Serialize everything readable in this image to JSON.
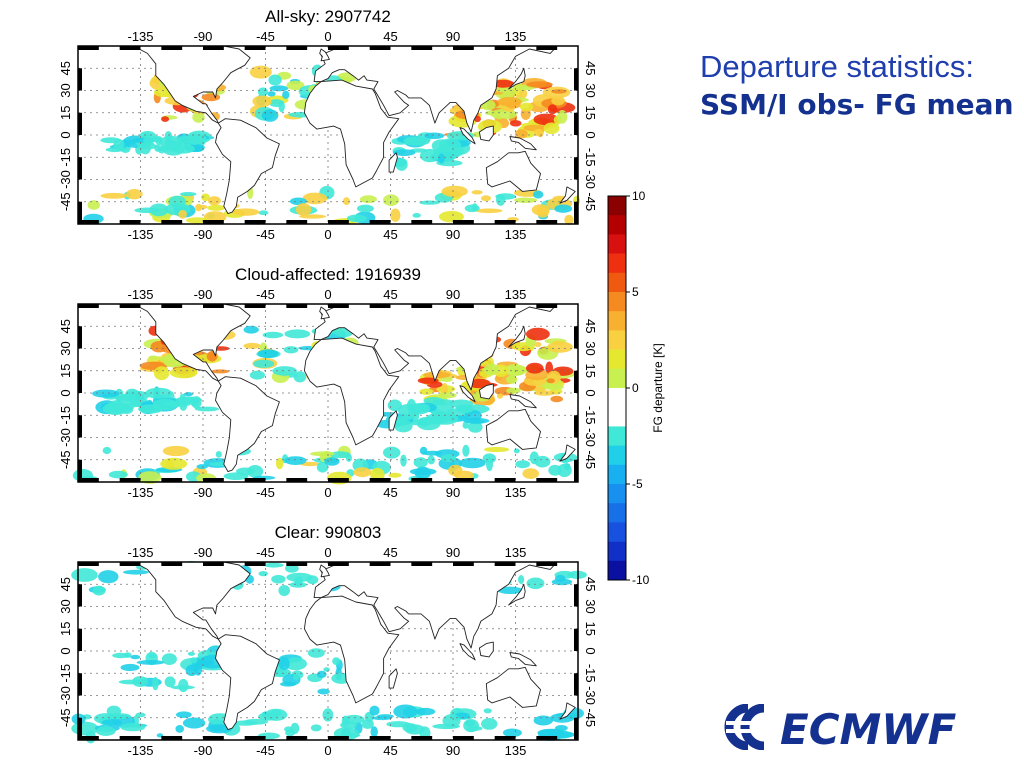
{
  "heading": {
    "line1": "Departure statistics:",
    "line2": "SSM/I obs- FG mean"
  },
  "maps": [
    {
      "title": "All-sky: 2907742",
      "bias": "mixed"
    },
    {
      "title": "Cloud-affected: 1916939",
      "bias": "warm"
    },
    {
      "title": "Clear: 990803",
      "bias": "cool"
    }
  ],
  "lon_ticks": [
    "-135",
    "-90",
    "-45",
    "0",
    "45",
    "90",
    "135"
  ],
  "lon_tick_values": [
    -135,
    -90,
    -45,
    0,
    45,
    90,
    135
  ],
  "lat_ticks": [
    "-45",
    "-30",
    "-15",
    "0",
    "15",
    "30",
    "45"
  ],
  "lat_tick_values": [
    -45,
    -30,
    -15,
    0,
    15,
    30,
    45
  ],
  "lon_range": [
    -180,
    180
  ],
  "lat_range": [
    -60,
    60
  ],
  "colorbar": {
    "label": "FG departure [K]",
    "ticks": [
      "10",
      "5",
      "0",
      "-5",
      "-10"
    ],
    "range": [
      -10,
      10
    ],
    "colors": [
      "#8b0000",
      "#b50000",
      "#d81010",
      "#ee3010",
      "#f05a10",
      "#f58a20",
      "#f8b030",
      "#f8d040",
      "#e6e830",
      "#c8f050",
      "#ffffff",
      "#ffffff",
      "#40e8d8",
      "#20d0e8",
      "#18b0f0",
      "#1890f0",
      "#1870e8",
      "#1850e0",
      "#1030c8",
      "#0a10a0"
    ]
  },
  "logo": {
    "text": "ECMWF",
    "color": "#14318f"
  }
}
